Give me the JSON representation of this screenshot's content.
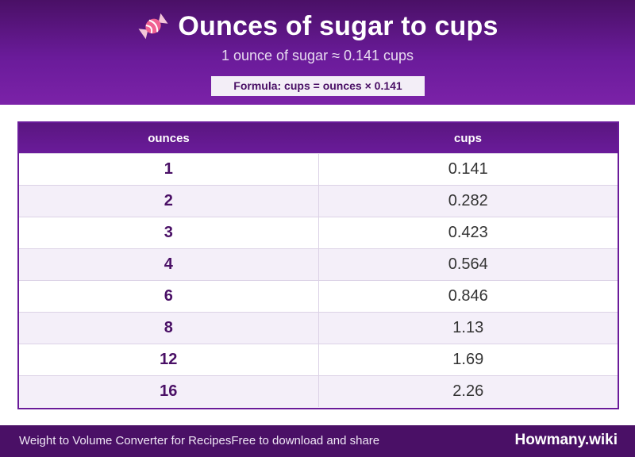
{
  "header": {
    "icon": "candy-icon",
    "title": "Ounces of sugar to cups",
    "subtitle": "1 ounce of sugar ≈ 0.141 cups",
    "formula": "Formula: cups = ounces × 0.141"
  },
  "table": {
    "columns": [
      "ounces",
      "cups"
    ],
    "rows": [
      {
        "ounces": "1",
        "cups": "0.141"
      },
      {
        "ounces": "2",
        "cups": "0.282"
      },
      {
        "ounces": "3",
        "cups": "0.423"
      },
      {
        "ounces": "4",
        "cups": "0.564"
      },
      {
        "ounces": "6",
        "cups": "0.846"
      },
      {
        "ounces": "8",
        "cups": "1.13"
      },
      {
        "ounces": "12",
        "cups": "1.69"
      },
      {
        "ounces": "16",
        "cups": "2.26"
      }
    ]
  },
  "footer": {
    "tagline": "Weight to Volume Converter for RecipesFree to download and share",
    "brand": "Howmany.wiki"
  },
  "colors": {
    "accent": "#6a1b9a",
    "header_dark": "#4a1066"
  }
}
